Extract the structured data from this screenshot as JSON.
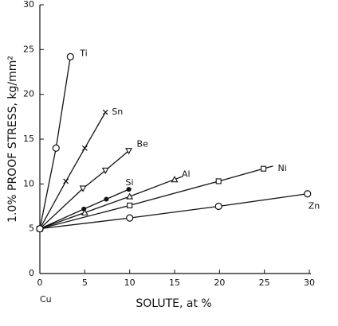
{
  "chart_data": {
    "type": "line",
    "xlabel": "SOLUTE, at %",
    "ylabel": "1.0% PROOF STRESS, kg/mm²",
    "annotation": "Cu",
    "xlim": [
      0,
      30
    ],
    "xticks": [
      0,
      5,
      10,
      15,
      20,
      25,
      30
    ],
    "ylim": [
      0,
      30
    ],
    "yticks": [
      0,
      5,
      10,
      15,
      20,
      25,
      30
    ],
    "color": "#111111",
    "series": [
      {
        "name": "Ti",
        "marker": "open-circle",
        "x": [
          0,
          1.8,
          3.4
        ],
        "values": [
          5,
          14,
          24.2
        ]
      },
      {
        "name": "Sn",
        "marker": "cross",
        "x": [
          0,
          2.9,
          5,
          7.3
        ],
        "values": [
          5,
          10.3,
          14,
          18
        ]
      },
      {
        "name": "Be",
        "marker": "triangle-down",
        "x": [
          0,
          4.8,
          7.3,
          9.9
        ],
        "values": [
          5,
          9.5,
          11.5,
          13.7
        ]
      },
      {
        "name": "Si",
        "marker": "filled-circle",
        "x": [
          0,
          4.9,
          7.4,
          9.9
        ],
        "values": [
          5,
          7.2,
          8.3,
          9.4
        ]
      },
      {
        "name": "Al",
        "marker": "triangle-up",
        "x": [
          0,
          5,
          10,
          15
        ],
        "values": [
          5,
          6.8,
          8.6,
          10.5
        ]
      },
      {
        "name": "Ni",
        "marker": "square",
        "x": [
          0,
          10,
          19.9,
          24.9
        ],
        "values": [
          5,
          7.6,
          10.3,
          11.7
        ]
      },
      {
        "name": "Zn",
        "marker": "open-circle",
        "x": [
          0,
          10,
          19.9,
          29.8
        ],
        "values": [
          5,
          6.2,
          7.5,
          8.9
        ]
      }
    ]
  }
}
